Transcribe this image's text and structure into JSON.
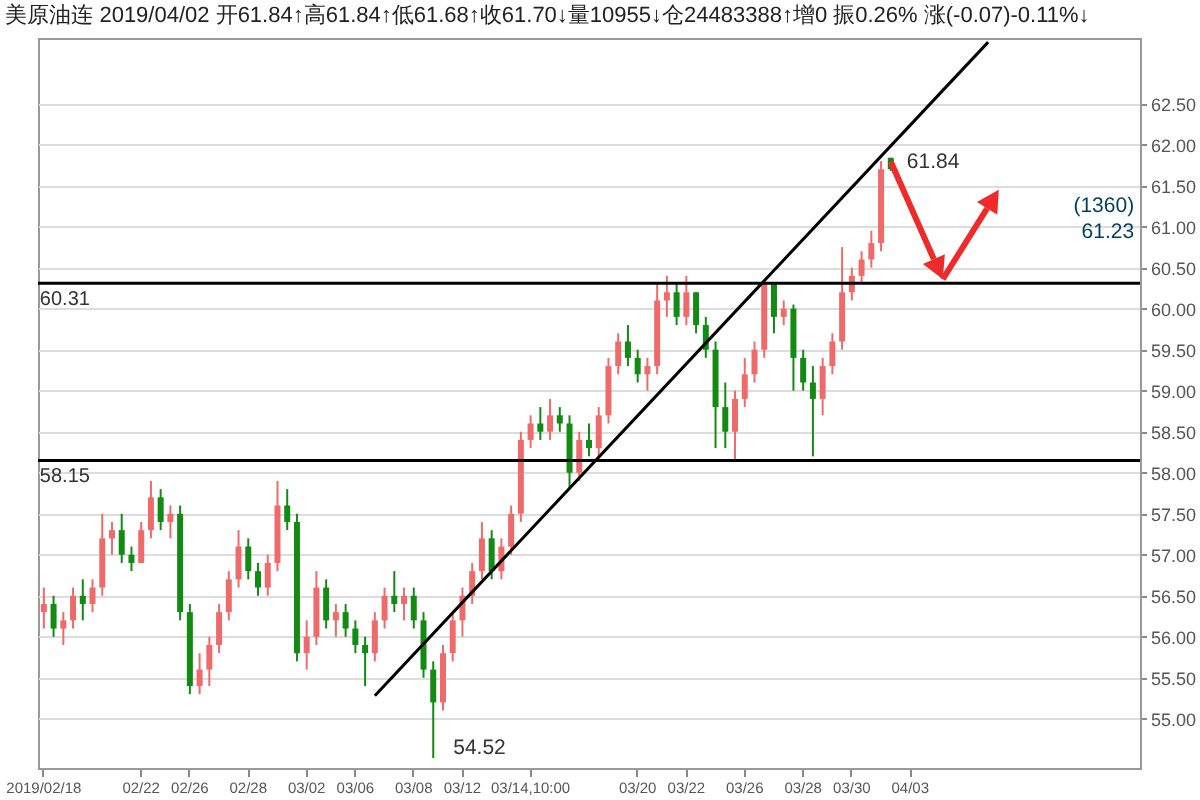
{
  "chart_data": {
    "type": "candlestick",
    "title": "美原油连 2019/04/02 开61.84↑高61.84↑低61.68↑收61.70↓量10955↓仓24483388↑增0 振0.26% 涨(-0.07)-0.11%↓",
    "categories": [
      "2019/02/18",
      null,
      null,
      null,
      null,
      null,
      null,
      null,
      null,
      null,
      "02/22",
      null,
      null,
      null,
      null,
      "02/26",
      null,
      null,
      null,
      null,
      null,
      "02/28",
      null,
      null,
      null,
      null,
      null,
      "03/02",
      null,
      null,
      null,
      null,
      "03/06",
      null,
      null,
      null,
      null,
      null,
      "03/08",
      null,
      null,
      null,
      null,
      "03/12",
      null,
      null,
      null,
      null,
      null,
      null,
      "03/14,10:00",
      null,
      null,
      null,
      null,
      null,
      null,
      null,
      null,
      null,
      null,
      "03/20",
      null,
      null,
      null,
      null,
      "03/22",
      null,
      null,
      null,
      null,
      null,
      "03/26",
      null,
      null,
      null,
      null,
      null,
      "03/28",
      null,
      null,
      null,
      null,
      "03/30",
      null,
      null,
      null,
      null,
      null,
      "04/03",
      null,
      null,
      null,
      null,
      null,
      null,
      null,
      null,
      null,
      null,
      null,
      null,
      null,
      null,
      null,
      null,
      null,
      null,
      null,
      null,
      null,
      null,
      null
    ],
    "ohlc": [
      [
        56.3,
        56.6,
        56.1,
        56.4
      ],
      [
        56.4,
        56.5,
        56.0,
        56.1
      ],
      [
        56.1,
        56.3,
        55.9,
        56.2
      ],
      [
        56.2,
        56.6,
        56.1,
        56.5
      ],
      [
        56.5,
        56.7,
        56.2,
        56.4
      ],
      [
        56.4,
        56.7,
        56.3,
        56.6
      ],
      [
        56.6,
        57.5,
        56.5,
        57.2
      ],
      [
        57.2,
        57.4,
        57.0,
        57.3
      ],
      [
        57.3,
        57.5,
        56.9,
        57.0
      ],
      [
        57.0,
        57.1,
        56.8,
        56.9
      ],
      [
        56.9,
        57.4,
        56.9,
        57.3
      ],
      [
        57.3,
        57.9,
        57.2,
        57.7
      ],
      [
        57.7,
        57.8,
        57.3,
        57.4
      ],
      [
        57.4,
        57.6,
        57.2,
        57.5
      ],
      [
        57.5,
        57.6,
        56.2,
        56.3
      ],
      [
        56.3,
        56.4,
        55.3,
        55.4
      ],
      [
        55.4,
        55.8,
        55.3,
        55.6
      ],
      [
        55.6,
        56.0,
        55.4,
        55.9
      ],
      [
        55.9,
        56.4,
        55.8,
        56.3
      ],
      [
        56.3,
        56.8,
        56.2,
        56.7
      ],
      [
        56.7,
        57.3,
        56.6,
        57.1
      ],
      [
        57.1,
        57.2,
        56.7,
        56.8
      ],
      [
        56.8,
        56.9,
        56.5,
        56.6
      ],
      [
        56.6,
        57.0,
        56.5,
        56.9
      ],
      [
        56.9,
        57.9,
        56.8,
        57.6
      ],
      [
        57.6,
        57.8,
        57.3,
        57.4
      ],
      [
        57.4,
        57.5,
        55.7,
        55.8
      ],
      [
        55.8,
        56.2,
        55.6,
        56.0
      ],
      [
        56.0,
        56.8,
        55.9,
        56.6
      ],
      [
        56.6,
        56.7,
        56.1,
        56.2
      ],
      [
        56.2,
        56.4,
        56.0,
        56.3
      ],
      [
        56.3,
        56.4,
        56.0,
        56.1
      ],
      [
        56.1,
        56.2,
        55.8,
        55.9
      ],
      [
        55.9,
        56.0,
        55.4,
        55.8
      ],
      [
        55.8,
        56.3,
        55.7,
        56.2
      ],
      [
        56.2,
        56.6,
        56.1,
        56.5
      ],
      [
        56.5,
        56.8,
        56.3,
        56.4
      ],
      [
        56.4,
        56.6,
        56.2,
        56.5
      ],
      [
        56.5,
        56.6,
        56.1,
        56.2
      ],
      [
        56.2,
        56.3,
        55.5,
        55.6
      ],
      [
        55.6,
        55.7,
        54.52,
        55.2
      ],
      [
        55.2,
        55.9,
        55.1,
        55.8
      ],
      [
        55.8,
        56.3,
        55.7,
        56.2
      ],
      [
        56.2,
        56.6,
        56.0,
        56.5
      ],
      [
        56.5,
        56.9,
        56.4,
        56.8
      ],
      [
        56.8,
        57.4,
        56.7,
        57.2
      ],
      [
        57.2,
        57.3,
        56.7,
        56.8
      ],
      [
        56.8,
        57.2,
        56.7,
        57.1
      ],
      [
        57.1,
        57.6,
        57.0,
        57.5
      ],
      [
        57.5,
        58.5,
        57.4,
        58.4
      ],
      [
        58.4,
        58.7,
        58.3,
        58.6
      ],
      [
        58.6,
        58.8,
        58.4,
        58.5
      ],
      [
        58.5,
        58.9,
        58.4,
        58.7
      ],
      [
        58.7,
        58.8,
        58.5,
        58.6
      ],
      [
        58.6,
        58.7,
        57.8,
        58.0
      ],
      [
        58.0,
        58.5,
        57.9,
        58.4
      ],
      [
        58.4,
        58.6,
        58.2,
        58.3
      ],
      [
        58.3,
        58.8,
        58.2,
        58.7
      ],
      [
        58.7,
        59.4,
        58.6,
        59.3
      ],
      [
        59.3,
        59.7,
        59.2,
        59.6
      ],
      [
        59.6,
        59.8,
        59.3,
        59.4
      ],
      [
        59.4,
        59.5,
        59.1,
        59.2
      ],
      [
        59.2,
        59.4,
        59.0,
        59.3
      ],
      [
        59.3,
        60.3,
        59.2,
        60.1
      ],
      [
        60.1,
        60.4,
        59.9,
        60.2
      ],
      [
        60.2,
        60.3,
        59.8,
        59.9
      ],
      [
        59.9,
        60.4,
        59.8,
        60.2
      ],
      [
        60.2,
        60.2,
        59.7,
        59.8
      ],
      [
        59.8,
        59.9,
        59.4,
        59.5
      ],
      [
        59.5,
        59.6,
        58.3,
        58.8
      ],
      [
        58.8,
        59.1,
        58.3,
        58.5
      ],
      [
        58.5,
        59.0,
        58.15,
        58.9
      ],
      [
        58.9,
        59.4,
        58.8,
        59.2
      ],
      [
        59.2,
        59.6,
        59.1,
        59.5
      ],
      [
        59.5,
        60.35,
        59.4,
        60.3
      ],
      [
        60.3,
        60.3,
        59.7,
        59.9
      ],
      [
        59.9,
        60.1,
        59.8,
        60.0
      ],
      [
        60.0,
        60.05,
        59.0,
        59.4
      ],
      [
        59.4,
        59.5,
        59.0,
        59.1
      ],
      [
        59.1,
        59.3,
        58.2,
        58.9
      ],
      [
        58.9,
        59.4,
        58.7,
        59.3
      ],
      [
        59.3,
        59.7,
        59.2,
        59.6
      ],
      [
        59.6,
        60.75,
        59.5,
        60.2
      ],
      [
        60.2,
        60.5,
        60.1,
        60.4
      ],
      [
        60.4,
        60.7,
        60.3,
        60.6
      ],
      [
        60.6,
        60.95,
        60.5,
        60.8
      ],
      [
        60.8,
        61.8,
        60.7,
        61.7
      ],
      [
        61.84,
        61.84,
        61.68,
        61.7
      ],
      null,
      null,
      null,
      null,
      null,
      null,
      null,
      null,
      null,
      null,
      null,
      null,
      null,
      null,
      null,
      null,
      null,
      null,
      null,
      null,
      null,
      null,
      null,
      null,
      null
    ],
    "colors": [
      "#ef6b6b",
      "#138a13",
      "#ef6b6b",
      "#ef6b6b",
      "#138a13",
      "#ef6b6b",
      "#ef6b6b",
      "#ef6b6b",
      "#138a13",
      "#138a13",
      "#ef6b6b",
      "#ef6b6b",
      "#138a13",
      "#ef6b6b",
      "#138a13",
      "#138a13",
      "#ef6b6b",
      "#ef6b6b",
      "#ef6b6b",
      "#ef6b6b",
      "#ef6b6b",
      "#138a13",
      "#138a13",
      "#ef6b6b",
      "#ef6b6b",
      "#138a13",
      "#138a13",
      "#ef6b6b",
      "#ef6b6b",
      "#138a13",
      "#ef6b6b",
      "#138a13",
      "#138a13",
      "#138a13",
      "#ef6b6b",
      "#ef6b6b",
      "#138a13",
      "#ef6b6b",
      "#138a13",
      "#138a13",
      "#138a13",
      "#ef6b6b",
      "#ef6b6b",
      "#ef6b6b",
      "#ef6b6b",
      "#ef6b6b",
      "#138a13",
      "#ef6b6b",
      "#ef6b6b",
      "#ef6b6b",
      "#ef6b6b",
      "#138a13",
      "#ef6b6b",
      "#138a13",
      "#138a13",
      "#ef6b6b",
      "#138a13",
      "#ef6b6b",
      "#ef6b6b",
      "#ef6b6b",
      "#138a13",
      "#138a13",
      "#ef6b6b",
      "#ef6b6b",
      "#ef6b6b",
      "#138a13",
      "#ef6b6b",
      "#138a13",
      "#138a13",
      "#138a13",
      "#138a13",
      "#ef6b6b",
      "#ef6b6b",
      "#ef6b6b",
      "#ef6b6b",
      "#138a13",
      "#ef6b6b",
      "#138a13",
      "#138a13",
      "#138a13",
      "#ef6b6b",
      "#ef6b6b",
      "#ef6b6b",
      "#ef6b6b",
      "#ef6b6b",
      "#ef6b6b",
      "#ef6b6b",
      "#138a13",
      null,
      null,
      null,
      null,
      null,
      null,
      null,
      null,
      null,
      null,
      null,
      null,
      null,
      null,
      null,
      null,
      null,
      null,
      null,
      null,
      null,
      null,
      null,
      null,
      null
    ],
    "series": [
      {
        "type": "line",
        "color": "#000000",
        "values": [
          null,
          null,
          null,
          null,
          null,
          null,
          null,
          null,
          null,
          null,
          null,
          null,
          null,
          null,
          null,
          null,
          null,
          null,
          null,
          null,
          null,
          null,
          null,
          null,
          null,
          null,
          null,
          null,
          null,
          null,
          null,
          null,
          null,
          null,
          55.28,
          null,
          null,
          null,
          null,
          null,
          null,
          null,
          null,
          null,
          null,
          null,
          null,
          null,
          null,
          null,
          null,
          null,
          null,
          null,
          null,
          null,
          null,
          null,
          null,
          null,
          null,
          null,
          null,
          null,
          null,
          null,
          null,
          null,
          null,
          null,
          null,
          null,
          null,
          null,
          null,
          null,
          null,
          null,
          null,
          null,
          null,
          null,
          null,
          null,
          null,
          null,
          null,
          null,
          null,
          null,
          null,
          null,
          null,
          null,
          null,
          null,
          null,
          63.25,
          null,
          null,
          null,
          null,
          null,
          null,
          null,
          null,
          null,
          null,
          null,
          null,
          null,
          null,
          null
        ]
      }
    ],
    "ylim": [
      54.4,
      63.3
    ],
    "yticks": [
      {
        "value": 55,
        "label": "55.00"
      },
      {
        "value": 55.5,
        "label": "55.50"
      },
      {
        "value": 56,
        "label": "56.00"
      },
      {
        "value": 56.5,
        "label": "56.50"
      },
      {
        "value": 57,
        "label": "57.00"
      },
      {
        "value": 57.5,
        "label": "57.50"
      },
      {
        "value": 58,
        "label": "58.00"
      },
      {
        "value": 58.5,
        "label": "58.50"
      },
      {
        "value": 59,
        "label": "59.00"
      },
      {
        "value": 59.5,
        "label": "59.50"
      },
      {
        "value": 60,
        "label": "60.00"
      },
      {
        "value": 60.5,
        "label": "60.50"
      },
      {
        "value": 61,
        "label": "61.00"
      },
      {
        "value": 61.5,
        "label": "61.50"
      },
      {
        "value": 62,
        "label": "62.00"
      },
      {
        "value": 62.5,
        "label": "62.50"
      }
    ],
    "grid": "y",
    "ref_lines": [
      {
        "axis": "y",
        "value": 60.31,
        "label": "60.31",
        "color": "#000000"
      },
      {
        "axis": "y",
        "value": 58.15,
        "label": "58.15",
        "color": "#000000"
      }
    ],
    "annotations": [
      "61.84",
      "54.52",
      "(1360)\n61.23"
    ]
  }
}
